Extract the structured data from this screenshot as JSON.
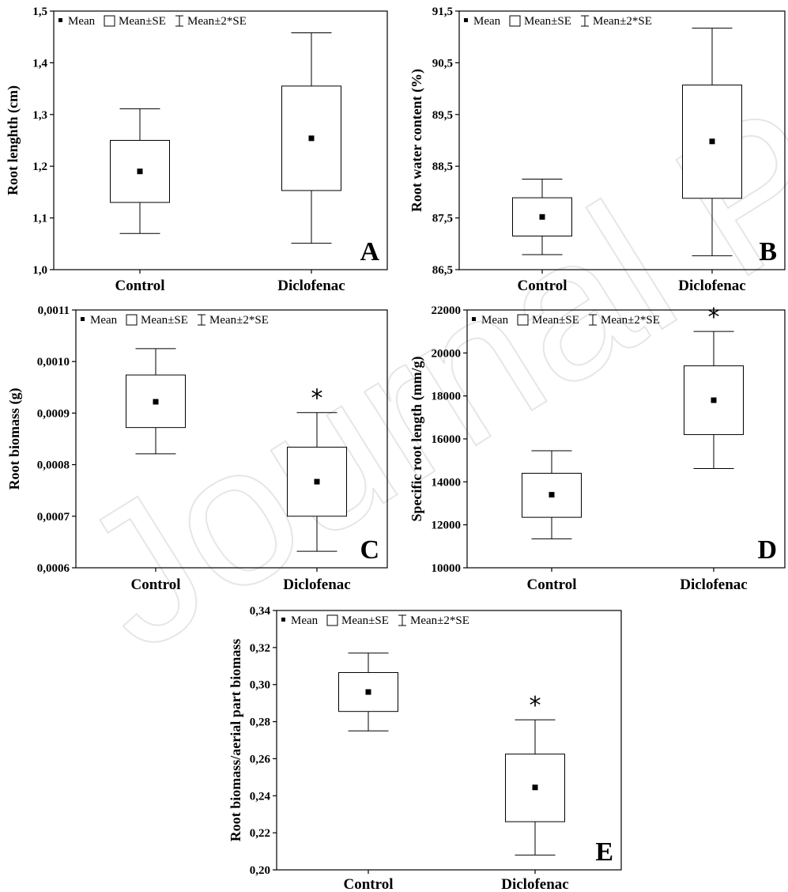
{
  "legend": {
    "mean": "Mean",
    "se": "Mean±SE",
    "se2": "Mean±2*SE"
  },
  "watermark": "Journal Pre-proof",
  "chart_data": [
    {
      "type": "box",
      "panel": "A",
      "ylabel": "Root lenghth (cm)",
      "ylim": [
        1.0,
        1.5
      ],
      "yticks": [
        "1,0",
        "1,1",
        "1,2",
        "1,3",
        "1,4",
        "1,5"
      ],
      "categories": [
        "Control",
        "Diclofenac"
      ],
      "mean": [
        1.19,
        1.254
      ],
      "se_low": [
        1.13,
        1.153
      ],
      "se_high": [
        1.25,
        1.355
      ],
      "se2_low": [
        1.07,
        1.051
      ],
      "se2_high": [
        1.311,
        1.458
      ],
      "significant": [
        false,
        false
      ]
    },
    {
      "type": "box",
      "panel": "B",
      "ylabel": "Root water content (%)",
      "ylim": [
        86.5,
        91.5
      ],
      "yticks": [
        "86,5",
        "87,5",
        "88,5",
        "89,5",
        "90,5",
        "91,5"
      ],
      "categories": [
        "Control",
        "Diclofenac"
      ],
      "mean": [
        87.52,
        88.98
      ],
      "se_low": [
        87.15,
        87.88
      ],
      "se_high": [
        87.89,
        90.07
      ],
      "se2_low": [
        86.79,
        86.77
      ],
      "se2_high": [
        88.25,
        91.17
      ],
      "significant": [
        false,
        false
      ]
    },
    {
      "type": "box",
      "panel": "C",
      "ylabel": "Root biomass (g)",
      "ylim": [
        0.0006,
        0.0011
      ],
      "yticks": [
        "0,0006",
        "0,0007",
        "0,0008",
        "0,0009",
        "0,0010",
        "0,0011"
      ],
      "categories": [
        "Control",
        "Diclofenac"
      ],
      "mean": [
        0.000922,
        0.000767
      ],
      "se_low": [
        0.000872,
        0.0007
      ],
      "se_high": [
        0.000974,
        0.000834
      ],
      "se2_low": [
        0.000821,
        0.000632
      ],
      "se2_high": [
        0.001025,
        0.000901
      ],
      "significant": [
        false,
        true
      ]
    },
    {
      "type": "box",
      "panel": "D",
      "ylabel": "Specific root length (mm/g)",
      "ylim": [
        10000,
        22000
      ],
      "yticks": [
        "10000",
        "12000",
        "14000",
        "16000",
        "18000",
        "20000",
        "22000"
      ],
      "categories": [
        "Control",
        "Diclofenac"
      ],
      "mean": [
        13400,
        17800
      ],
      "se_low": [
        12350,
        16200
      ],
      "se_high": [
        14400,
        19400
      ],
      "se2_low": [
        11350,
        14620
      ],
      "se2_high": [
        15450,
        21000
      ],
      "significant": [
        false,
        true
      ]
    },
    {
      "type": "box",
      "panel": "E",
      "ylabel": "Root biomass/aerial part biomass",
      "ylim": [
        0.2,
        0.34
      ],
      "yticks": [
        "0,20",
        "0,22",
        "0,24",
        "0,26",
        "0,28",
        "0,30",
        "0,32",
        "0,34"
      ],
      "categories": [
        "Control",
        "Diclofenac"
      ],
      "mean": [
        0.296,
        0.2445
      ],
      "se_low": [
        0.2855,
        0.226
      ],
      "se_high": [
        0.3065,
        0.2625
      ],
      "se2_low": [
        0.275,
        0.208
      ],
      "se2_high": [
        0.317,
        0.281
      ],
      "significant": [
        false,
        true
      ]
    }
  ]
}
